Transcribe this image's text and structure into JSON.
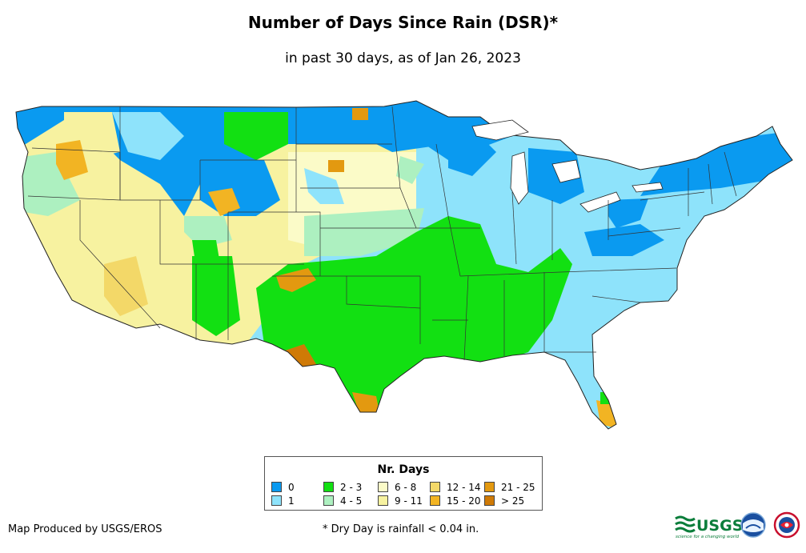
{
  "title": "Number of Days Since Rain (DSR)*",
  "subtitle": "in past 30 days, as of Jan 26, 2023",
  "legend": {
    "title": "Nr. Days",
    "items": [
      {
        "label": "0",
        "color": "#0a9af0"
      },
      {
        "label": "1",
        "color": "#8ee3fb"
      },
      {
        "label": "2 - 3",
        "color": "#12e012"
      },
      {
        "label": "4 - 5",
        "color": "#adf0c0"
      },
      {
        "label": "6 - 8",
        "color": "#fbfbc8"
      },
      {
        "label": "9 - 11",
        "color": "#f7f2a0"
      },
      {
        "label": "12 - 14",
        "color": "#f3d868"
      },
      {
        "label": "15 - 20",
        "color": "#f2b423"
      },
      {
        "label": "21 - 25",
        "color": "#e39910"
      },
      {
        "label": "> 25",
        "color": "#cf7a06"
      }
    ]
  },
  "credit": "Map Produced by USGS/EROS",
  "footnote": "* Dry Day is rainfall < 0.04 in.",
  "logos": {
    "usgs_text": "USGS",
    "usgs_tagline": "science for a changing world"
  }
}
